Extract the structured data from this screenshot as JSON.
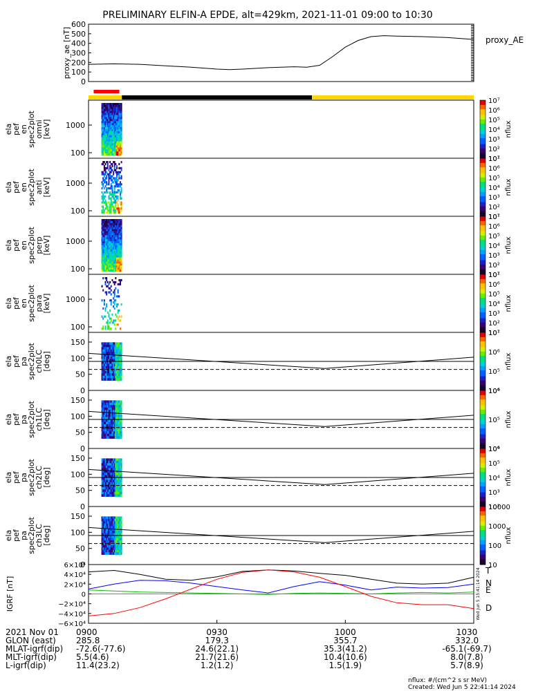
{
  "title": "PRELIMINARY ELFIN-A EPDE, alt=429km, 2021-11-01 09:00 to 10:30",
  "footer": {
    "units": "nflux: #/(cm^2 s sr MeV)",
    "created": "Created: Wed Jun  5 22:41:14 2024"
  },
  "time_axis": {
    "tick_labels": [
      "0900",
      "0930",
      "1000",
      "1030"
    ],
    "rows": [
      {
        "label": "2021 Nov 01",
        "values": [
          "0900",
          "0930",
          "1000",
          "1030"
        ]
      },
      {
        "label": "GLON (east)",
        "values": [
          "285.8",
          "179.3",
          "355.7",
          "332.0"
        ]
      },
      {
        "label": "MLAT-igrf(dip)",
        "values": [
          "-72.6(-77.6)",
          "24.6(22.1)",
          "35.3(41.2)",
          "-65.1(-69.7)"
        ]
      },
      {
        "label": "MLT-igrf(dip)",
        "values": [
          "5.5(4.6)",
          "21.7(21.6)",
          "10.4(10.6)",
          "8.0(7.8)"
        ]
      },
      {
        "label": "L-igrf(dip)",
        "values": [
          "11.4(23.2)",
          "1.2(1.2)",
          "1.5(1.9)",
          "5.7(8.9)"
        ]
      }
    ]
  },
  "colors": {
    "ae_line": "#000000",
    "bar_red": "#ff0000",
    "bar_black": "#000000",
    "bar_yellow": "#ffd700",
    "grf_T": "#000000",
    "grf_N": "#0000ff",
    "grf_E": "#00c000",
    "grf_D": "#ff0000"
  },
  "chart_data": [
    {
      "type": "line",
      "ylabel": "proxy_ae [nT]",
      "legend": "proxy_AE",
      "ylim": [
        0,
        600
      ],
      "yticks": [
        0,
        100,
        200,
        300,
        400,
        500,
        600
      ],
      "x_hours": [
        9.0,
        9.1,
        9.2,
        9.3,
        9.4,
        9.5,
        9.55,
        9.6,
        9.7,
        9.8,
        9.85,
        9.9,
        9.95,
        10.0,
        10.05,
        10.1,
        10.15,
        10.2,
        10.3,
        10.4,
        10.5
      ],
      "values": [
        180,
        185,
        180,
        165,
        150,
        130,
        125,
        130,
        145,
        155,
        150,
        170,
        260,
        360,
        430,
        470,
        480,
        475,
        470,
        460,
        440
      ]
    },
    {
      "type": "bar",
      "description_colors": "orbit segment bar",
      "segments": [
        {
          "color": "red",
          "start": 9.02,
          "end": 9.12,
          "row": "top"
        },
        {
          "color": "yellow",
          "start": 9.0,
          "end": 9.13,
          "row": "bottom"
        },
        {
          "color": "black",
          "start": 9.13,
          "end": 9.87,
          "row": "bottom"
        },
        {
          "color": "yellow",
          "start": 9.87,
          "end": 10.5,
          "row": "bottom"
        }
      ]
    },
    {
      "type": "heatmap",
      "ylabel": [
        "ela",
        "pef",
        "en",
        "spec2plot",
        "omni",
        "[keV]"
      ],
      "yscale": "log",
      "ytick_labels": [
        "100",
        "1000"
      ],
      "zlabel": "nflux",
      "zscale": "log",
      "ztick_labels": [
        "10¹",
        "10²",
        "10³",
        "10⁴",
        "10⁵",
        "10⁶",
        "10⁷"
      ],
      "data_time_range": [
        9.05,
        9.13
      ]
    },
    {
      "type": "heatmap",
      "ylabel": [
        "ela",
        "pef",
        "en",
        "spec2plot",
        "anti",
        "[keV]"
      ],
      "yscale": "log",
      "ytick_labels": [
        "100",
        "1000"
      ],
      "zlabel": "nflux",
      "zscale": "log",
      "ztick_labels": [
        "10¹",
        "10²",
        "10³",
        "10⁴",
        "10⁵",
        "10⁶",
        "10⁷"
      ],
      "data_time_range": [
        9.05,
        9.13
      ]
    },
    {
      "type": "heatmap",
      "ylabel": [
        "ela",
        "pef",
        "en",
        "spec2plot",
        "perp",
        "[keV]"
      ],
      "yscale": "log",
      "ytick_labels": [
        "100",
        "1000"
      ],
      "zlabel": "nflux",
      "zscale": "log",
      "ztick_labels": [
        "10¹",
        "10²",
        "10³",
        "10⁴",
        "10⁵",
        "10⁶",
        "10⁷"
      ],
      "data_time_range": [
        9.05,
        9.13
      ]
    },
    {
      "type": "heatmap",
      "ylabel": [
        "ela",
        "pef",
        "en",
        "spec2plot",
        "para",
        "[keV]"
      ],
      "yscale": "log",
      "ytick_labels": [
        "100",
        "1000"
      ],
      "zlabel": "nflux",
      "zscale": "log",
      "ztick_labels": [
        "10¹",
        "10²",
        "10³",
        "10⁴",
        "10⁵",
        "10⁶",
        "10⁷"
      ],
      "data_time_range": [
        9.05,
        9.13
      ]
    },
    {
      "type": "heatmap",
      "ylabel": [
        "ela",
        "pef",
        "pa",
        "spec2plot",
        "ch0LC",
        "[deg]"
      ],
      "ylim": [
        0,
        180
      ],
      "ytick_labels": [
        "0",
        "50",
        "100",
        "150"
      ],
      "zlabel": "nflux",
      "ztick_labels": [
        "10⁴",
        "10⁵",
        "10⁶",
        "10⁷"
      ],
      "data_time_range": [
        9.05,
        9.13
      ],
      "lines": {
        "solid_upper": {
          "x_hours": [
            9.0,
            9.92,
            10.5
          ],
          "values": [
            115,
            68,
            103
          ]
        },
        "solid_90": 90,
        "dashed_loss_cone": {
          "x_hours": [
            9.0,
            9.92,
            10.5
          ],
          "values": [
            65,
            65,
            65
          ]
        }
      }
    },
    {
      "type": "heatmap",
      "ylabel": [
        "ela",
        "pef",
        "pa",
        "spec2plot",
        "ch1LC",
        "[deg]"
      ],
      "ylim": [
        0,
        180
      ],
      "ytick_labels": [
        "0",
        "50",
        "100",
        "150"
      ],
      "zlabel": "nflux",
      "ztick_labels": [
        "10⁴",
        "10⁵",
        "10⁶"
      ],
      "data_time_range": [
        9.05,
        9.13
      ],
      "lines": {
        "solid_upper": {
          "x_hours": [
            9.0,
            9.92,
            10.5
          ],
          "values": [
            115,
            68,
            103
          ]
        },
        "solid_90": 90,
        "dashed_loss_cone": {
          "x_hours": [
            9.0,
            9.92,
            10.5
          ],
          "values": [
            65,
            65,
            65
          ]
        }
      }
    },
    {
      "type": "heatmap",
      "ylabel": [
        "ela",
        "pef",
        "pa",
        "spec2plot",
        "ch2LC",
        "[deg]"
      ],
      "ylim": [
        0,
        180
      ],
      "ytick_labels": [
        "0",
        "50",
        "100",
        "150"
      ],
      "zlabel": "nflux",
      "ztick_labels": [
        "10²",
        "10³",
        "10⁴",
        "10⁵",
        "10⁶"
      ],
      "data_time_range": [
        9.05,
        9.13
      ],
      "lines": {
        "solid_upper": {
          "x_hours": [
            9.0,
            9.92,
            10.5
          ],
          "values": [
            115,
            68,
            103
          ]
        },
        "solid_90": 90,
        "dashed_loss_cone": {
          "x_hours": [
            9.0,
            9.92,
            10.5
          ],
          "values": [
            65,
            65,
            65
          ]
        }
      }
    },
    {
      "type": "heatmap",
      "ylabel": [
        "ela",
        "pef",
        "pa",
        "spec2plot",
        "ch3LC",
        "[deg]"
      ],
      "ylim": [
        0,
        180
      ],
      "ytick_labels": [
        "0",
        "50",
        "100",
        "150"
      ],
      "zlabel": "nflux",
      "ztick_labels": [
        "10",
        "100",
        "1000",
        "10000"
      ],
      "data_time_range": [
        9.05,
        9.13
      ],
      "lines": {
        "solid_upper": {
          "x_hours": [
            9.0,
            9.92,
            10.5
          ],
          "values": [
            115,
            68,
            103
          ]
        },
        "solid_90": 90,
        "dashed_loss_cone": {
          "x_hours": [
            9.0,
            9.92,
            10.5
          ],
          "values": [
            65,
            65,
            65
          ]
        }
      }
    },
    {
      "type": "line",
      "ylabel": "IGRF [nT]",
      "ylim": [
        -60000,
        60000
      ],
      "ytick_labels": [
        "−6×10⁴",
        "−4×10⁴",
        "−2×10⁴",
        "0",
        "2×10⁴",
        "4×10⁴",
        "6×10⁴"
      ],
      "ytick_values": [
        -60000,
        -40000,
        -20000,
        0,
        20000,
        40000,
        60000
      ],
      "side_label": "Wed Jun  5 15:41:14 2024",
      "x_hours": [
        9.0,
        9.1,
        9.2,
        9.3,
        9.4,
        9.5,
        9.6,
        9.7,
        9.8,
        9.9,
        10.0,
        10.1,
        10.2,
        10.3,
        10.4,
        10.5
      ],
      "series": [
        {
          "name": "T",
          "values": [
            45000,
            48000,
            40000,
            30000,
            28000,
            35000,
            46000,
            49000,
            47000,
            42000,
            38000,
            30000,
            22000,
            20000,
            22000,
            34000
          ]
        },
        {
          "name": "N",
          "values": [
            10000,
            20000,
            28000,
            27000,
            22000,
            15000,
            8000,
            2000,
            15000,
            25000,
            18000,
            8000,
            14000,
            12000,
            13000,
            20000
          ]
        },
        {
          "name": "E",
          "values": [
            8000,
            6000,
            4000,
            3000,
            2000,
            1000,
            0,
            -1000,
            1000,
            2000,
            1000,
            0,
            2000,
            3000,
            2000,
            4000
          ]
        },
        {
          "name": "D",
          "values": [
            -45000,
            -40000,
            -28000,
            -10000,
            10000,
            30000,
            44000,
            49000,
            45000,
            34000,
            15000,
            -5000,
            -18000,
            -22000,
            -22000,
            -30000
          ]
        }
      ]
    }
  ]
}
